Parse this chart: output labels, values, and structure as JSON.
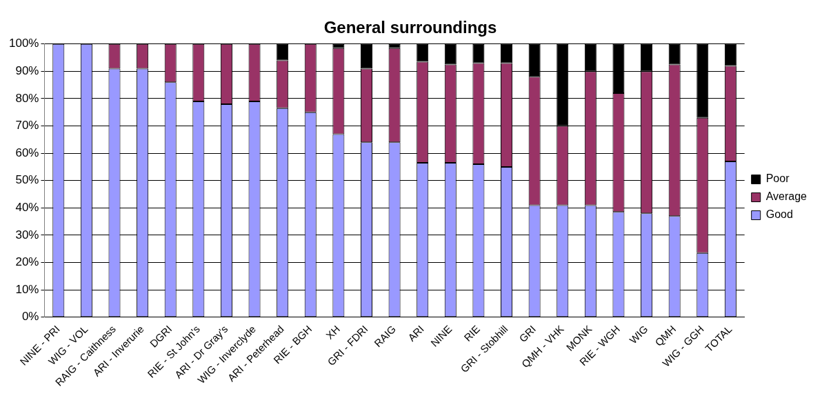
{
  "chart_data": {
    "type": "bar",
    "title": "General surroundings",
    "stacked": true,
    "categories": [
      "NINE - PRI",
      "WIG - VOL",
      "RAIG - Caithness",
      "ARI - Inverurie",
      "DGRI",
      "RIE - St John's",
      "ARI - Dr Gray's",
      "WIG - Inverclyde",
      "ARI - Peterhead",
      "RIE - BGH",
      "XH",
      "GRI - FDRI",
      "RAIG",
      "ARI",
      "NINE",
      "RIE",
      "GRI - Stobhill",
      "GRI",
      "QMH - VHK",
      "MONK",
      "RIE - WGH",
      "WIG",
      "QMH",
      "WIG - GGH",
      "TOTAL"
    ],
    "series": [
      {
        "name": "Good",
        "color": "#9999ff",
        "values": [
          100,
          100,
          91,
          91,
          86,
          79,
          78,
          79,
          76.5,
          75,
          67,
          64,
          64,
          56.5,
          56.5,
          56,
          55,
          41,
          41,
          41,
          38.5,
          38,
          37,
          23.5,
          57
        ]
      },
      {
        "name": "Average",
        "color": "#993366",
        "values": [
          0,
          0,
          9,
          9,
          14,
          21,
          22,
          21,
          17.5,
          25,
          31.5,
          27,
          34.5,
          37,
          36,
          37,
          38,
          47,
          29,
          49,
          43.5,
          52,
          55.5,
          49.5,
          35
        ]
      },
      {
        "name": "Poor",
        "color": "#000000",
        "values": [
          0,
          0,
          0,
          0,
          0,
          0,
          0,
          0,
          6,
          0,
          1.5,
          9,
          1.5,
          6.5,
          7.5,
          7,
          7,
          12,
          30,
          10,
          18,
          10,
          7.5,
          27,
          8
        ]
      }
    ],
    "ylim": [
      0,
      100
    ],
    "yticks": [
      {
        "value": 0,
        "label": "0%"
      },
      {
        "value": 10,
        "label": "10%"
      },
      {
        "value": 20,
        "label": "20%"
      },
      {
        "value": 30,
        "label": "30%"
      },
      {
        "value": 40,
        "label": "40%"
      },
      {
        "value": 50,
        "label": "50%"
      },
      {
        "value": 60,
        "label": "60%"
      },
      {
        "value": 70,
        "label": "70%"
      },
      {
        "value": 80,
        "label": "80%"
      },
      {
        "value": 90,
        "label": "90%"
      },
      {
        "value": 100,
        "label": "100%"
      }
    ],
    "grid": "y",
    "legend": "right"
  }
}
